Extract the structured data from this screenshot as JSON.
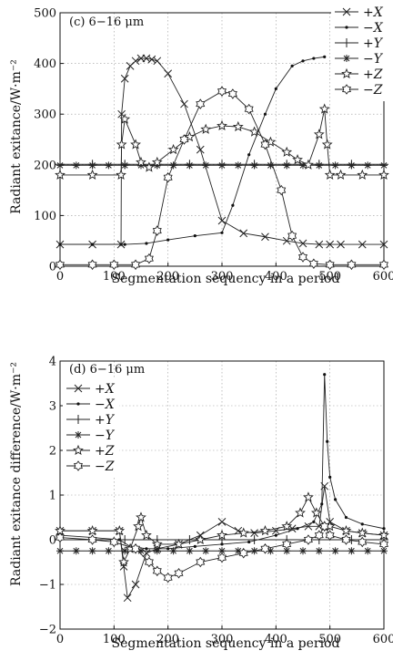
{
  "chart_data": [
    {
      "type": "line",
      "title": "(c) 6−16 μm",
      "xlabel": "Segmentation sequency in a period",
      "ylabel": "Radiant exitance/W·m⁻²",
      "xlim": [
        0,
        600
      ],
      "ylim": [
        0,
        500
      ],
      "xticks": [
        "0",
        "100",
        "200",
        "300",
        "400",
        "500",
        "600"
      ],
      "yticks": [
        "0",
        "100",
        "200",
        "300",
        "400",
        "500"
      ],
      "grid": "dotted",
      "legend_position": "top-right",
      "series": [
        {
          "name": "+X",
          "marker": "x",
          "x": [
            0,
            60,
            113,
            114,
            120,
            130,
            140,
            150,
            160,
            170,
            180,
            200,
            230,
            260,
            300,
            340,
            380,
            420,
            450,
            480,
            500,
            520,
            560,
            600
          ],
          "y": [
            43,
            43,
            43,
            300,
            370,
            395,
            405,
            410,
            410,
            408,
            405,
            380,
            320,
            230,
            90,
            65,
            58,
            50,
            45,
            43,
            43,
            43,
            43,
            43
          ]
        },
        {
          "name": "−X",
          "marker": "dot",
          "x": [
            0,
            60,
            113,
            120,
            160,
            200,
            250,
            300,
            320,
            350,
            380,
            400,
            430,
            450,
            470,
            490
          ],
          "y": [
            43,
            43,
            43,
            43,
            45,
            52,
            60,
            66,
            120,
            220,
            300,
            350,
            395,
            405,
            410,
            413
          ]
        },
        {
          "name": "+Y",
          "marker": "plus",
          "x": [
            0,
            60,
            120,
            180,
            240,
            300,
            360,
            420,
            480,
            540,
            600
          ],
          "y": [
            201,
            201,
            201,
            201,
            201,
            201,
            201,
            201,
            201,
            201,
            201
          ]
        },
        {
          "name": "−Y",
          "marker": "star",
          "x": [
            0,
            30,
            60,
            90,
            120,
            150,
            180,
            210,
            240,
            270,
            300,
            330,
            360,
            390,
            420,
            450,
            480,
            510,
            540,
            570,
            600
          ],
          "y": [
            199,
            199,
            199,
            199,
            199,
            199,
            199,
            199,
            199,
            199,
            199,
            199,
            199,
            199,
            199,
            199,
            199,
            199,
            199,
            199,
            199
          ]
        },
        {
          "name": "+Z",
          "marker": "pentagram",
          "x": [
            0,
            60,
            113,
            114,
            120,
            140,
            150,
            165,
            180,
            210,
            240,
            270,
            300,
            330,
            360,
            390,
            420,
            440,
            460,
            480,
            490,
            495,
            500,
            520,
            560,
            600
          ],
          "y": [
            180,
            180,
            180,
            240,
            290,
            240,
            205,
            195,
            205,
            230,
            255,
            270,
            277,
            275,
            265,
            245,
            225,
            210,
            200,
            260,
            310,
            240,
            180,
            180,
            180,
            180
          ]
        },
        {
          "name": "−Z",
          "marker": "hexagram",
          "x": [
            0,
            60,
            100,
            140,
            165,
            180,
            200,
            230,
            260,
            300,
            320,
            350,
            380,
            410,
            430,
            450,
            470,
            500,
            540,
            600
          ],
          "y": [
            3,
            3,
            3,
            3,
            15,
            70,
            175,
            250,
            320,
            345,
            340,
            310,
            240,
            150,
            60,
            18,
            5,
            3,
            3,
            3
          ]
        }
      ]
    },
    {
      "type": "line",
      "title": "(d) 6−16 μm",
      "xlabel": "Segmentation sequency in a period",
      "ylabel": "Radiant exitance difference/W·m⁻²",
      "xlim": [
        0,
        600
      ],
      "ylim": [
        -2,
        4
      ],
      "xticks": [
        "0",
        "100",
        "200",
        "300",
        "400",
        "500",
        "600"
      ],
      "yticks": [
        "−2",
        "−1",
        "0",
        "1",
        "2",
        "3",
        "4"
      ],
      "grid": "dotted",
      "legend_position": "top-left",
      "series": [
        {
          "name": "+X",
          "marker": "x",
          "x": [
            0,
            60,
            110,
            118,
            125,
            140,
            160,
            180,
            220,
            260,
            300,
            330,
            360,
            400,
            430,
            460,
            480,
            490,
            500,
            530,
            560,
            600
          ],
          "y": [
            0.2,
            0.2,
            0.2,
            -0.6,
            -1.3,
            -1.0,
            -0.3,
            -0.2,
            -0.1,
            0.1,
            0.4,
            0.2,
            0.15,
            0.2,
            0.25,
            0.3,
            0.3,
            1.2,
            0.4,
            0.2,
            0.15,
            0.1
          ]
        },
        {
          "name": "−X",
          "marker": "dot",
          "x": [
            0,
            60,
            110,
            130,
            160,
            200,
            250,
            300,
            350,
            400,
            440,
            470,
            485,
            490,
            495,
            500,
            510,
            530,
            560,
            600
          ],
          "y": [
            0.1,
            0.05,
            0.0,
            -0.15,
            -0.2,
            -0.2,
            -0.15,
            -0.1,
            -0.05,
            0.1,
            0.25,
            0.4,
            0.8,
            3.7,
            2.2,
            1.4,
            0.9,
            0.5,
            0.35,
            0.25
          ]
        },
        {
          "name": "+Y",
          "marker": "plus",
          "x": [
            0,
            60,
            120,
            180,
            240,
            300,
            360,
            420,
            480,
            540,
            600
          ],
          "y": [
            0.0,
            0.0,
            0.0,
            0.0,
            0.0,
            0.0,
            0.0,
            0.0,
            0.0,
            0.0,
            0.0
          ]
        },
        {
          "name": "−Y",
          "marker": "star",
          "x": [
            0,
            30,
            60,
            90,
            120,
            150,
            180,
            210,
            240,
            270,
            300,
            330,
            360,
            390,
            420,
            450,
            480,
            510,
            540,
            570,
            600
          ],
          "y": [
            -0.25,
            -0.25,
            -0.25,
            -0.25,
            -0.25,
            -0.25,
            -0.25,
            -0.25,
            -0.25,
            -0.25,
            -0.25,
            -0.25,
            -0.25,
            -0.25,
            -0.25,
            -0.25,
            -0.25,
            -0.25,
            -0.25,
            -0.25,
            -0.25
          ]
        },
        {
          "name": "+Z",
          "marker": "pentagram",
          "x": [
            0,
            60,
            110,
            118,
            130,
            145,
            150,
            160,
            180,
            220,
            260,
            300,
            340,
            380,
            420,
            445,
            460,
            475,
            490,
            500,
            530,
            560,
            600
          ],
          "y": [
            0.2,
            0.2,
            0.2,
            -0.5,
            -0.2,
            0.3,
            0.5,
            0.1,
            -0.1,
            -0.1,
            0.0,
            0.1,
            0.15,
            0.2,
            0.3,
            0.6,
            0.95,
            0.6,
            0.3,
            0.3,
            0.2,
            0.15,
            0.1
          ]
        },
        {
          "name": "−Z",
          "marker": "hexagram",
          "x": [
            0,
            60,
            100,
            140,
            165,
            180,
            200,
            220,
            260,
            300,
            340,
            380,
            420,
            460,
            480,
            490,
            500,
            530,
            560,
            600
          ],
          "y": [
            0.05,
            0.0,
            -0.05,
            -0.2,
            -0.5,
            -0.7,
            -0.85,
            -0.75,
            -0.5,
            -0.4,
            -0.3,
            -0.2,
            -0.1,
            0.0,
            0.1,
            0.3,
            0.1,
            0.0,
            -0.05,
            -0.1
          ]
        }
      ]
    }
  ]
}
